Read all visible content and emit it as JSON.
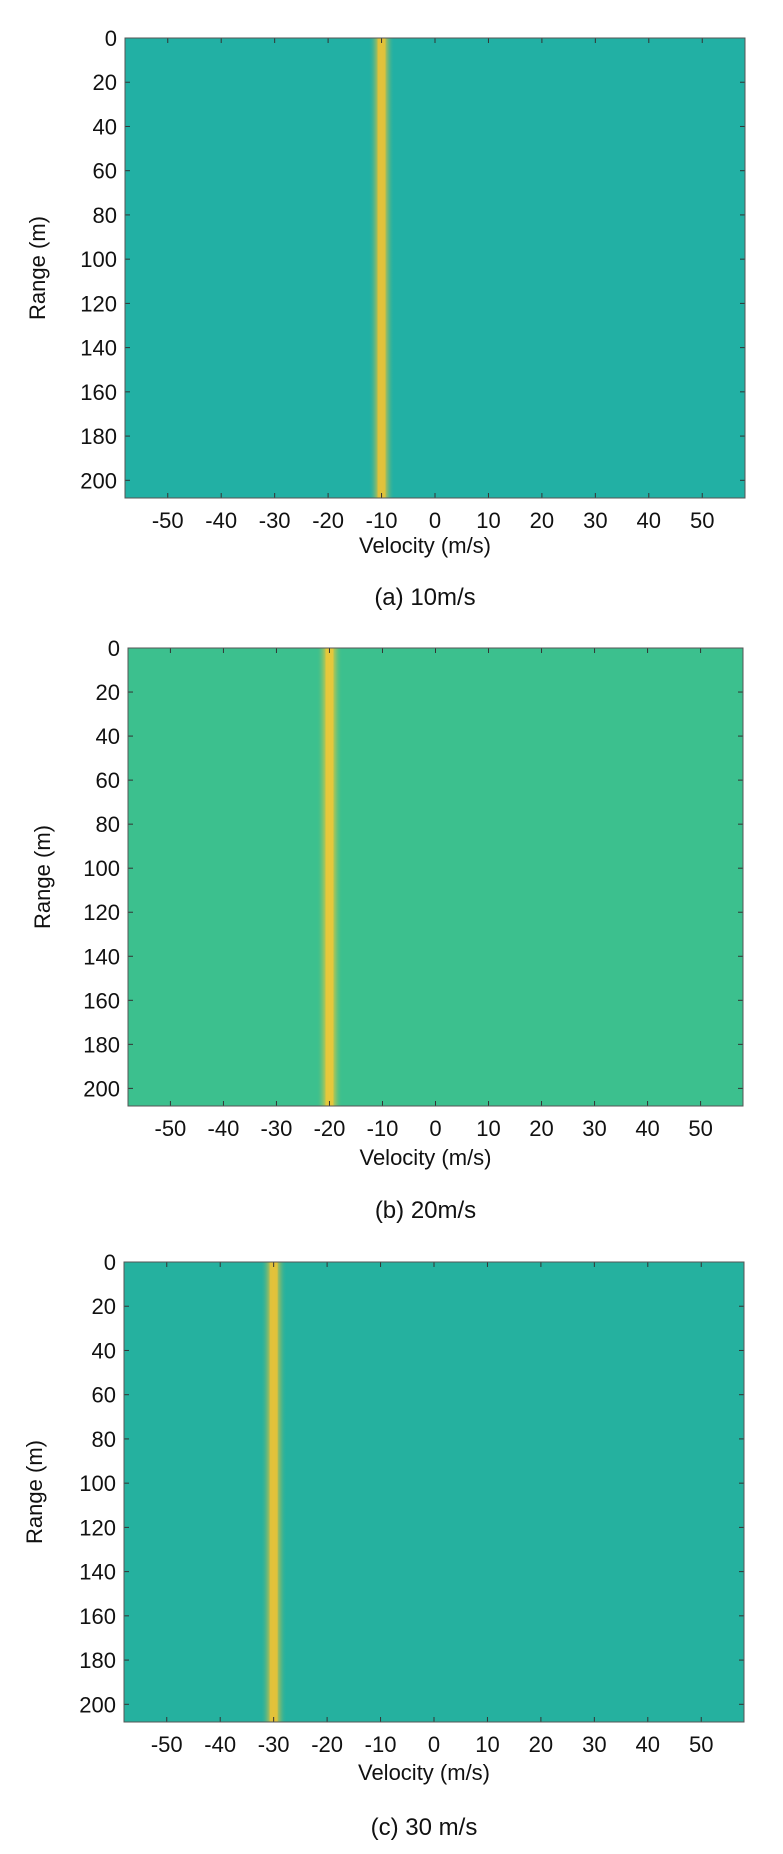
{
  "chart_data": [
    {
      "type": "heatmap",
      "caption": "(a) 10m/s",
      "xlabel": "Velocity  (m/s)",
      "ylabel": "Range (m)",
      "xlim": [
        -58,
        58
      ],
      "ylim": [
        0,
        208
      ],
      "xticks": [
        -50,
        -40,
        -30,
        -20,
        -10,
        0,
        10,
        20,
        30,
        40,
        50
      ],
      "yticks": [
        0,
        20,
        40,
        60,
        80,
        100,
        120,
        140,
        160,
        180,
        200
      ],
      "y_inverted": true,
      "target_velocity": -10,
      "background_color": "#22b0a4",
      "peak_color": "#e3c23a"
    },
    {
      "type": "heatmap",
      "caption": "(b) 20m/s",
      "xlabel": "Velocity  (m/s)",
      "ylabel": "Range  (m)",
      "xlim": [
        -58,
        58
      ],
      "ylim": [
        0,
        208
      ],
      "xticks": [
        -50,
        -40,
        -30,
        -20,
        -10,
        0,
        10,
        20,
        30,
        40,
        50
      ],
      "yticks": [
        0,
        20,
        40,
        60,
        80,
        100,
        120,
        140,
        160,
        180,
        200
      ],
      "y_inverted": true,
      "target_velocity": -20,
      "background_color": "#3cc08e",
      "peak_color": "#e8c83a"
    },
    {
      "type": "heatmap",
      "caption": "(c) 30 m/s",
      "xlabel": "Velocity  (m/s)",
      "ylabel": "Range  (m)",
      "xlim": [
        -58,
        58
      ],
      "ylim": [
        0,
        208
      ],
      "xticks": [
        -50,
        -40,
        -30,
        -20,
        -10,
        0,
        10,
        20,
        30,
        40,
        50
      ],
      "yticks": [
        0,
        20,
        40,
        60,
        80,
        100,
        120,
        140,
        160,
        180,
        200
      ],
      "y_inverted": true,
      "target_velocity": -30,
      "background_color": "#25b19f",
      "peak_color": "#e3c23a"
    }
  ]
}
